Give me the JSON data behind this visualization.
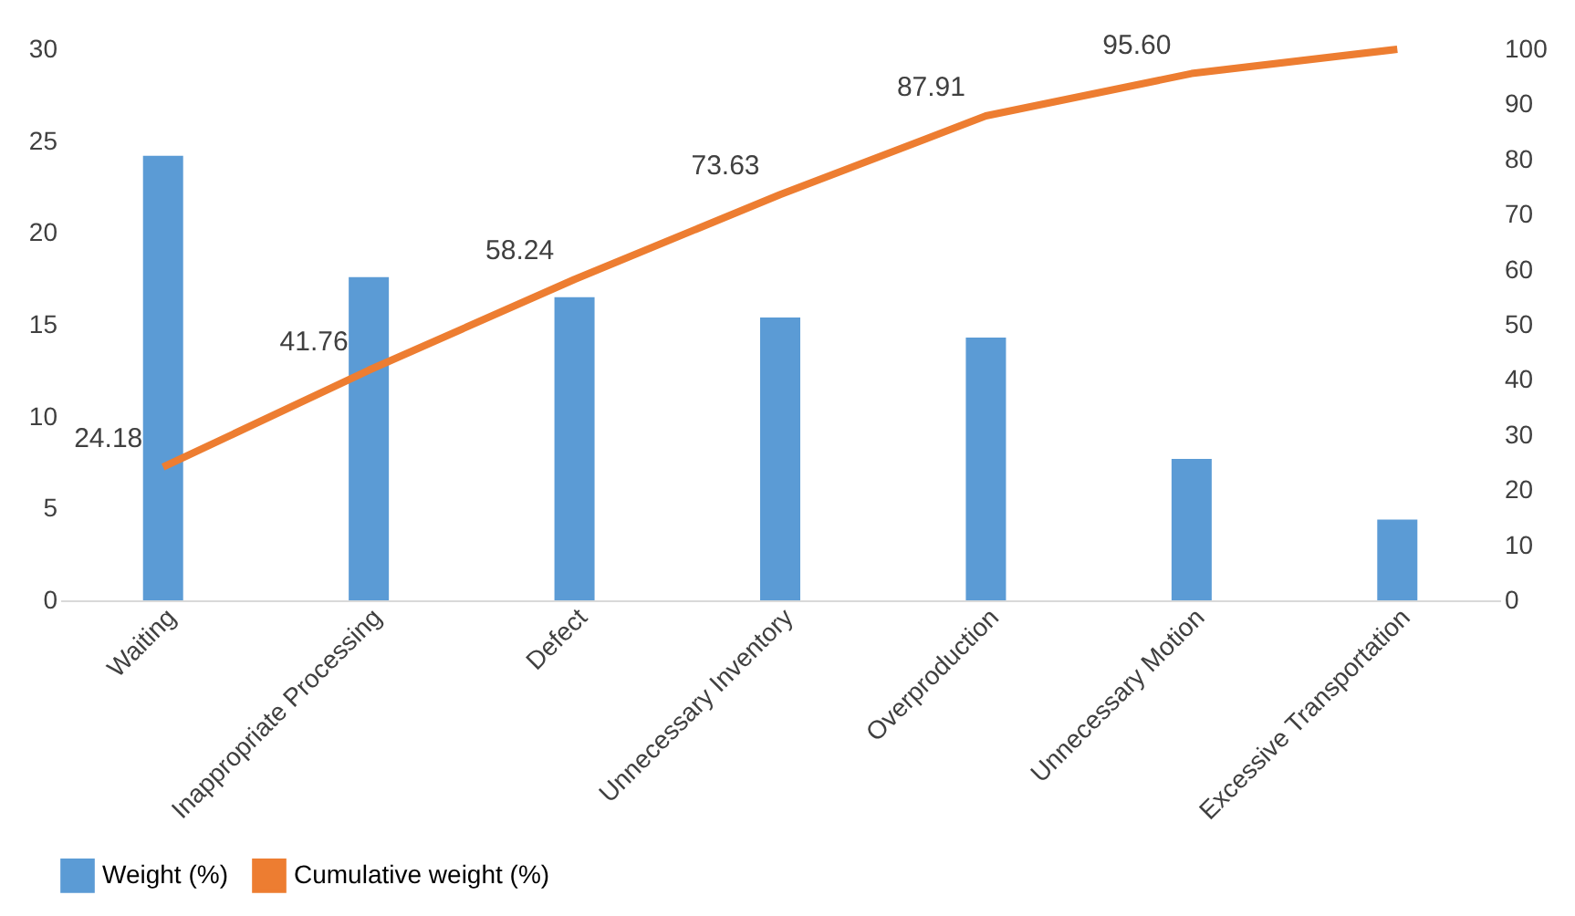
{
  "chart_data": {
    "type": "bar",
    "categories": [
      "Waiting",
      "Inappropriate Processing",
      "Defect",
      "Unnecessary Inventory",
      "Overproduction",
      "Unnecessary Motion",
      "Excessive Transportation"
    ],
    "series": [
      {
        "name": "Weight (%)",
        "color": "#5b9bd5",
        "values": [
          24.2,
          17.6,
          16.5,
          15.4,
          14.3,
          7.7,
          4.4
        ]
      },
      {
        "name": "Cumulative weight (%)",
        "type": "line",
        "axis": "y2",
        "color": "#ed7d31",
        "values": [
          24.18,
          41.76,
          58.24,
          73.63,
          87.91,
          95.6,
          100
        ],
        "value_labels": [
          "24.18",
          "41.76",
          "58.24",
          "73.63",
          "87.91",
          "95.60",
          null
        ]
      }
    ],
    "ylim": [
      0,
      30
    ],
    "yticks": [
      0,
      5,
      10,
      15,
      20,
      25,
      30
    ],
    "y2lim": [
      0,
      100
    ],
    "y2ticks": [
      0,
      10,
      20,
      30,
      40,
      50,
      60,
      70,
      80,
      90,
      100
    ],
    "grid": false,
    "legend": "bottom"
  }
}
